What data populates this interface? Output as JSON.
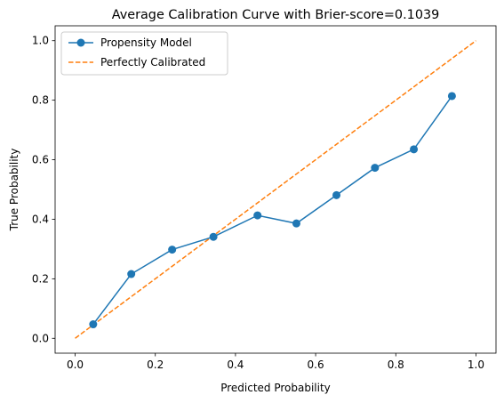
{
  "chart_data": {
    "type": "line",
    "title": "Average Calibration Curve with Brier-score=0.1039",
    "xlabel": "Predicted Probability",
    "ylabel": "True Probability",
    "xlim": [
      -0.05,
      1.05
    ],
    "ylim": [
      -0.05,
      1.05
    ],
    "xticks": [
      "0.0",
      "0.2",
      "0.4",
      "0.6",
      "0.8",
      "1.0"
    ],
    "yticks": [
      "0.0",
      "0.2",
      "0.4",
      "0.6",
      "0.8",
      "1.0"
    ],
    "grid": false,
    "legend_position": "top-left",
    "series": [
      {
        "name": "Propensity Model",
        "style": "solid line with circle markers",
        "color": "#1f77b4",
        "x": [
          0.045,
          0.14,
          0.242,
          0.345,
          0.455,
          0.552,
          0.652,
          0.748,
          0.845,
          0.94
        ],
        "y": [
          0.047,
          0.216,
          0.298,
          0.341,
          0.413,
          0.386,
          0.481,
          0.573,
          0.635,
          0.814
        ]
      },
      {
        "name": "Perfectly Calibrated",
        "style": "dashed line",
        "color": "#ff7f0e",
        "x": [
          0,
          1
        ],
        "y": [
          0,
          1
        ]
      }
    ]
  }
}
